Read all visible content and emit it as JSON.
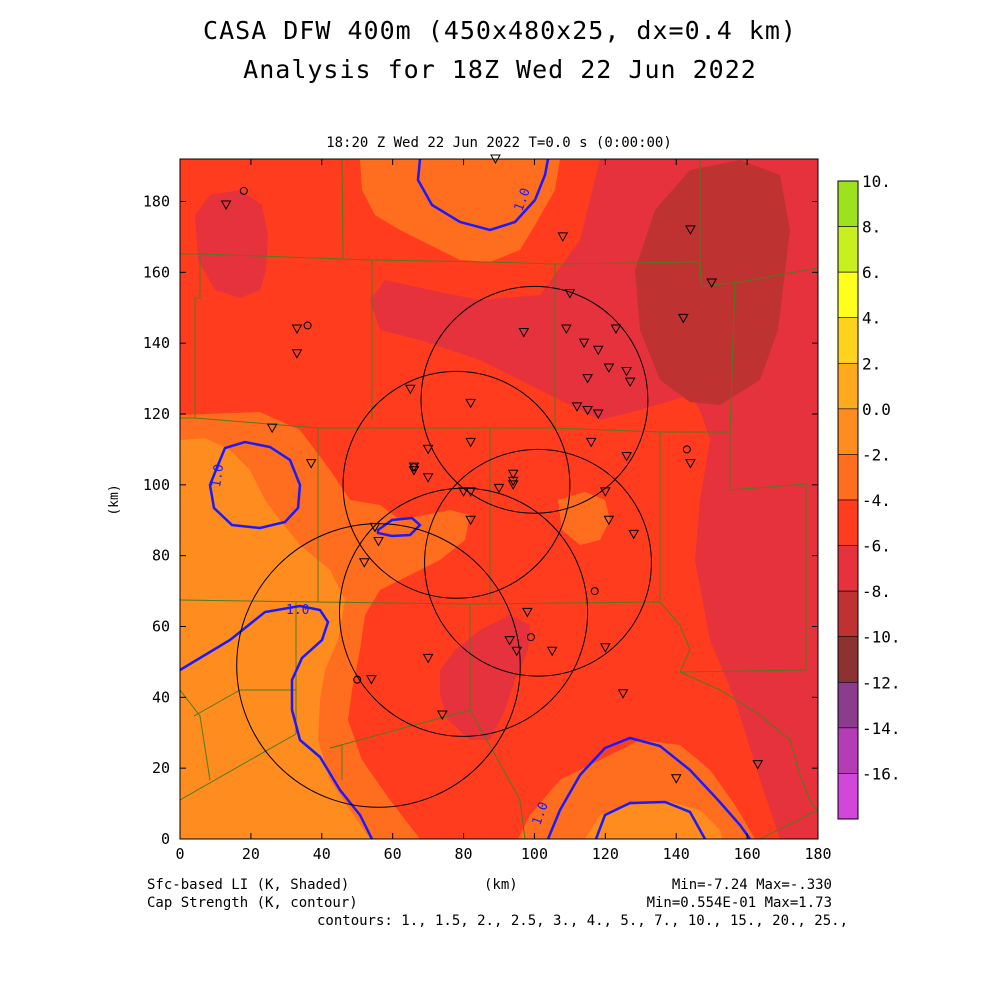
{
  "header": {
    "title_line1": "CASA DFW 400m (450x480x25, dx=0.4 km)",
    "title_line2": "Analysis for 18Z Wed 22 Jun 2022",
    "subtitle": "18:20 Z Wed 22 Jun 2022    T=0.0 s (0:00:00)"
  },
  "axes": {
    "x_ticks": [
      "0",
      "20",
      "40",
      "60",
      "80",
      "100",
      "120",
      "140",
      "160",
      "180"
    ],
    "y_ticks": [
      "0",
      "20",
      "40",
      "60",
      "80",
      "100",
      "120",
      "140",
      "160",
      "180"
    ],
    "x_label": "(km)",
    "y_label": "(km)",
    "xlim": [
      0,
      180
    ],
    "ylim": [
      0,
      192
    ]
  },
  "colorbar": {
    "labels": [
      "10.",
      "8.",
      "6.",
      "4.",
      "2.",
      "0.0",
      "-2.",
      "-4.",
      "-6.",
      "-8.",
      "-10.",
      "-12.",
      "-14.",
      "-16."
    ],
    "colors": [
      "#9ee21e",
      "#c8f01e",
      "#ffff1e",
      "#ffd21e",
      "#ffaa1e",
      "#ff8c1e",
      "#ff6e1e",
      "#ff3c1e",
      "#e6323c",
      "#be3232",
      "#8c3232",
      "#8c3c8c",
      "#b43cb4",
      "#d246dc"
    ]
  },
  "fields": {
    "shaded_colors": {
      "orange_light": "#ff8c1e",
      "orange": "#ff6e1e",
      "red": "#ff3c1e",
      "red_dark": "#e6323c",
      "maroon": "#be3232"
    },
    "contour_color": "#1a1aff",
    "contour_label": "1.0",
    "county_line_color": "#507a1e"
  },
  "footer": {
    "left_line1": "Sfc-based LI (K, Shaded)",
    "left_line2": "Cap Strength (K, contour)",
    "center": "(km)",
    "right_line1": "Min=-7.24 Max=-.330",
    "right_line2": "Min=0.554E-01 Max=1.73",
    "contours": "contours: 1., 1.5, 2., 2.5, 3., 4., 5., 7., 10., 15., 20., 25.,"
  },
  "radars": [
    {
      "cx": 100,
      "cy": 124,
      "r": 32
    },
    {
      "cx": 78,
      "cy": 100,
      "r": 32
    },
    {
      "cx": 101,
      "cy": 78,
      "r": 32
    },
    {
      "cx": 56,
      "cy": 49,
      "r": 40
    },
    {
      "cx": 80,
      "cy": 64,
      "r": 35
    }
  ],
  "stations_triangle": [
    [
      13,
      179
    ],
    [
      89,
      192
    ],
    [
      108,
      170
    ],
    [
      144,
      172
    ],
    [
      150,
      157
    ],
    [
      33,
      144
    ],
    [
      33,
      137
    ],
    [
      110,
      154
    ],
    [
      97,
      143
    ],
    [
      109,
      144
    ],
    [
      114,
      140
    ],
    [
      118,
      138
    ],
    [
      123,
      144
    ],
    [
      121,
      133
    ],
    [
      126,
      132
    ],
    [
      127,
      129
    ],
    [
      142,
      147
    ],
    [
      115,
      130
    ],
    [
      65,
      127
    ],
    [
      82,
      123
    ],
    [
      112,
      122
    ],
    [
      115,
      121
    ],
    [
      118,
      120
    ],
    [
      26,
      116
    ],
    [
      82,
      112
    ],
    [
      116,
      112
    ],
    [
      126,
      108
    ],
    [
      144,
      106
    ],
    [
      37,
      106
    ],
    [
      70,
      110
    ],
    [
      66,
      105
    ],
    [
      66,
      104
    ],
    [
      70,
      102
    ],
    [
      94,
      103
    ],
    [
      94,
      100
    ],
    [
      80,
      98
    ],
    [
      82,
      98
    ],
    [
      90,
      99
    ],
    [
      94,
      101
    ],
    [
      120,
      98
    ],
    [
      82,
      90
    ],
    [
      121,
      90
    ],
    [
      128,
      86
    ],
    [
      55,
      88
    ],
    [
      56,
      84
    ],
    [
      52,
      78
    ],
    [
      98,
      64
    ],
    [
      93,
      56
    ],
    [
      95,
      53
    ],
    [
      105,
      53
    ],
    [
      120,
      54
    ],
    [
      70,
      51
    ],
    [
      54,
      45
    ],
    [
      74,
      35
    ],
    [
      125,
      41
    ],
    [
      140,
      17
    ],
    [
      163,
      21
    ]
  ],
  "stations_circle": [
    [
      18,
      183
    ],
    [
      36,
      145
    ],
    [
      143,
      110
    ],
    [
      66,
      105
    ],
    [
      117,
      70
    ],
    [
      99,
      57
    ],
    [
      50,
      45
    ]
  ]
}
